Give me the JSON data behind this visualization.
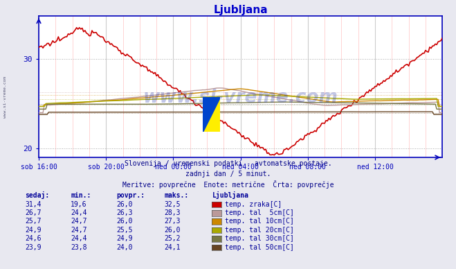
{
  "title": "Ljubljana",
  "title_color": "#0000cc",
  "bg_color": "#e8e8f0",
  "plot_bg": "#ffffff",
  "axis_color": "#0000bb",
  "y_min": 19.0,
  "y_max": 34.8,
  "y_ticks": [
    20,
    30
  ],
  "x_labels": [
    "sob 16:00",
    "sob 20:00",
    "ned 00:00",
    "ned 04:00",
    "ned 08:00",
    "ned 12:00"
  ],
  "subtitle1": "Slovenija / vremenski podatki - avtomatske postaje.",
  "subtitle2": "zadnji dan / 5 minut.",
  "subtitle3": "Meritve: povprečne  Enote: metrične  Črta: povprečje",
  "subtitle_color": "#000088",
  "table_header_color": "#000099",
  "table_data": [
    [
      "31,4",
      "19,6",
      "26,0",
      "32,5",
      "temp. zraka[C]",
      "#cc0000"
    ],
    [
      "26,7",
      "24,4",
      "26,3",
      "28,3",
      "temp. tal  5cm[C]",
      "#bb9999"
    ],
    [
      "25,7",
      "24,7",
      "26,0",
      "27,3",
      "temp. tal 10cm[C]",
      "#cc8800"
    ],
    [
      "24,9",
      "24,7",
      "25,5",
      "26,0",
      "temp. tal 20cm[C]",
      "#aaaa00"
    ],
    [
      "24,6",
      "24,4",
      "24,9",
      "25,2",
      "temp. tal 30cm[C]",
      "#777744"
    ],
    [
      "23,9",
      "23,8",
      "24,0",
      "24,1",
      "temp. tal 50cm[C]",
      "#664422"
    ]
  ],
  "n_points": 289,
  "x_tick_positions": [
    0,
    48,
    96,
    144,
    192,
    240,
    288
  ]
}
